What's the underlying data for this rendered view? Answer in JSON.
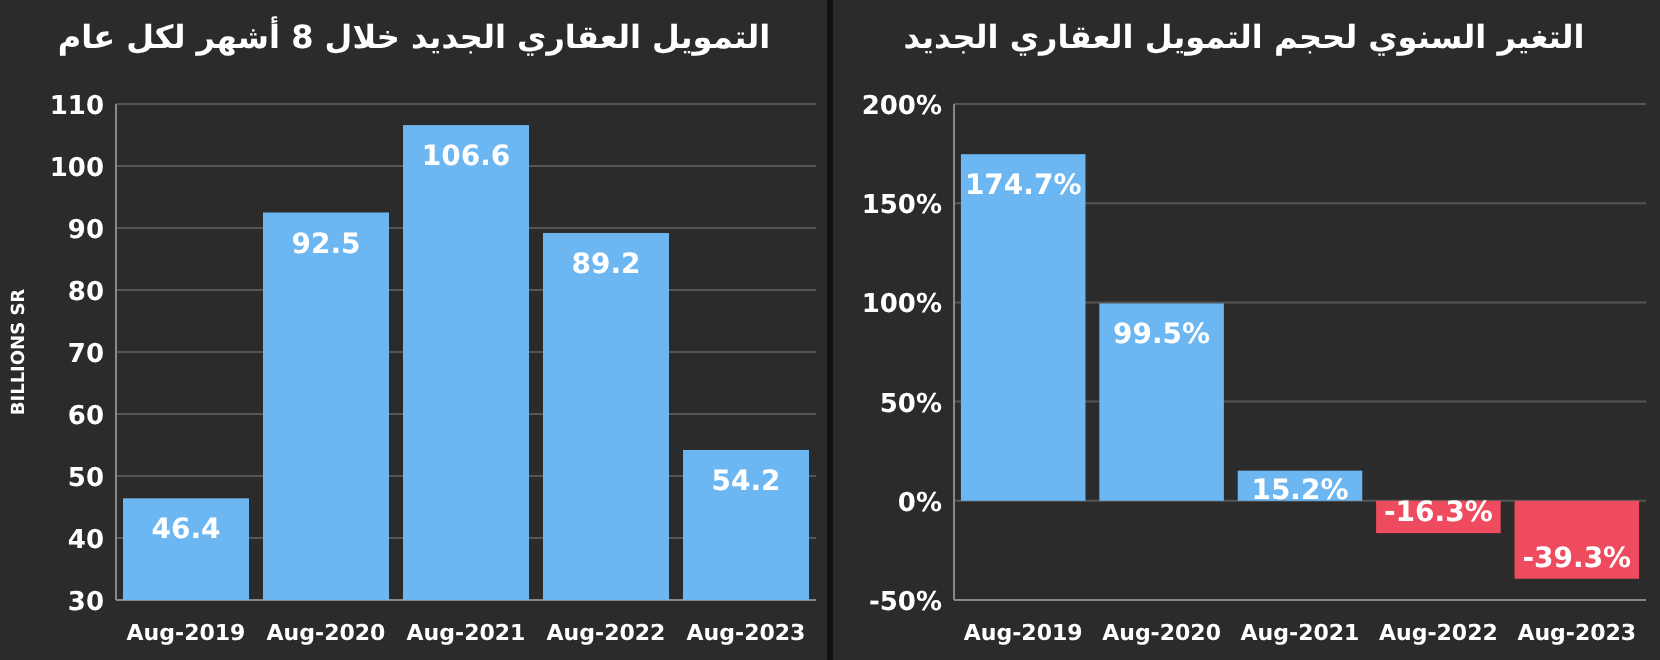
{
  "chart_data": [
    {
      "type": "bar",
      "title": "التمويل العقاري الجديد خلال 8 أشهر لكل عام",
      "ylabel": "BILLIONS SR",
      "categories": [
        "Aug-2019",
        "Aug-2020",
        "Aug-2021",
        "Aug-2022",
        "Aug-2023"
      ],
      "values": [
        46.4,
        92.5,
        106.6,
        89.2,
        54.2
      ],
      "colors": [
        "#6cb6f2",
        "#6cb6f2",
        "#6cb6f2",
        "#6cb6f2",
        "#6cb6f2"
      ],
      "ylim": [
        30,
        110
      ],
      "yticks": [
        30,
        40,
        50,
        60,
        70,
        80,
        90,
        100,
        110
      ],
      "grid": "y",
      "data_labels": true
    },
    {
      "type": "bar",
      "title": "التغير السنوي لحجم التمويل العقاري الجديد",
      "categories": [
        "Aug-2019",
        "Aug-2020",
        "Aug-2021",
        "Aug-2022",
        "Aug-2023"
      ],
      "values": [
        174.7,
        99.5,
        15.2,
        -16.3,
        -39.3
      ],
      "colors": [
        "#6cb6f2",
        "#6cb6f2",
        "#6cb6f2",
        "#ee4b5e",
        "#ee4b5e"
      ],
      "value_labels": [
        "174.7%",
        "99.5%",
        "15.2%",
        "-16.3%",
        "-39.3%"
      ],
      "ylim": [
        -50,
        200
      ],
      "yticks": [
        {
          "value": -50,
          "label": "-50%"
        },
        {
          "value": 0,
          "label": "0%"
        },
        {
          "value": 50,
          "label": "50%"
        },
        {
          "value": 100,
          "label": "100%"
        },
        {
          "value": 150,
          "label": "150%"
        },
        {
          "value": 200,
          "label": "200%"
        }
      ],
      "grid": "y"
    }
  ]
}
